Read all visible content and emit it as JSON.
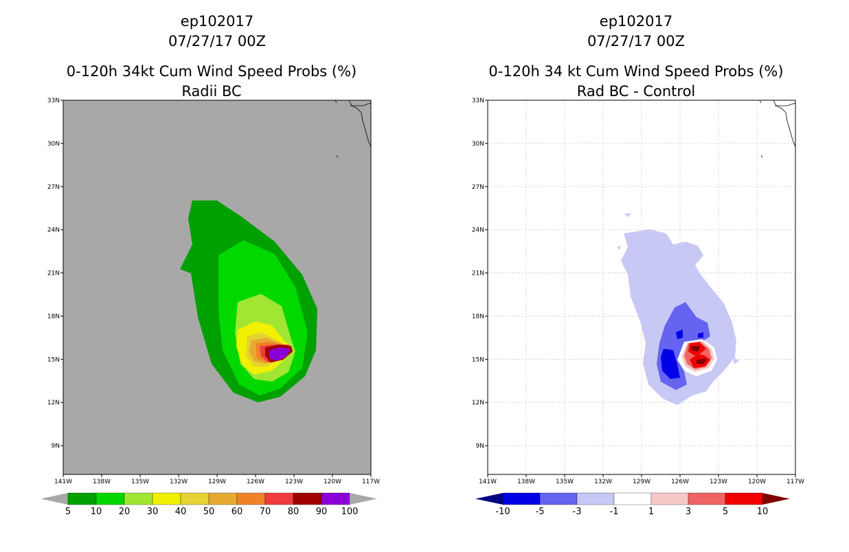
{
  "chart_data": [
    {
      "type": "contour-map",
      "storm_id": "ep102017",
      "date": "07/27/17 00Z",
      "title": "0-120h 34kt Cum Wind Speed Probs (%)",
      "subtitle": "Radii BC",
      "xlim": [
        -141,
        -117
      ],
      "ylim": [
        7,
        33
      ],
      "xticks": [
        "141W",
        "138W",
        "135W",
        "132W",
        "129W",
        "126W",
        "123W",
        "120W",
        "117W"
      ],
      "yticks": [
        "9N",
        "12N",
        "15N",
        "18N",
        "21N",
        "24N",
        "27N",
        "30N",
        "33N"
      ],
      "gridlines": false,
      "colorbar": {
        "labels": [
          "5",
          "10",
          "20",
          "30",
          "40",
          "50",
          "60",
          "70",
          "80",
          "90",
          "100"
        ],
        "colors": [
          "#00a000",
          "#00d800",
          "#a0e632",
          "#f0f000",
          "#e6d232",
          "#e6aa32",
          "#f08228",
          "#f03c3c",
          "#a00000",
          "#8c00d8"
        ],
        "under": "#a8a8a8",
        "over": "#a8a8a8"
      },
      "contour_centers": [
        {
          "level": 5,
          "lon": -124.8,
          "lat": 19.0
        },
        {
          "level": 10,
          "lon": -124.3,
          "lat": 18.0
        },
        {
          "level": 20,
          "lon": -124.3,
          "lat": 17.5
        },
        {
          "level": 30,
          "lon": -124.6,
          "lat": 16.0
        },
        {
          "level": 40,
          "lon": -124.3,
          "lat": 15.6
        },
        {
          "level": 50,
          "lon": -124.1,
          "lat": 15.3
        },
        {
          "level": 60,
          "lon": -123.9,
          "lat": 15.1
        },
        {
          "level": 70,
          "lon": -123.7,
          "lat": 15.05
        },
        {
          "level": 80,
          "lon": -123.3,
          "lat": 15.0
        },
        {
          "level": 90,
          "lon": -123.1,
          "lat": 15.0
        }
      ]
    },
    {
      "type": "contour-map",
      "storm_id": "ep102017",
      "date": "07/27/17 00Z",
      "title": "0-120h 34 kt Cum Wind Speed Probs (%)",
      "subtitle": "Rad BC - Control",
      "xlim": [
        -141,
        -117
      ],
      "ylim": [
        7,
        33
      ],
      "xticks": [
        "141W",
        "138W",
        "135W",
        "132W",
        "129W",
        "126W",
        "123W",
        "120W",
        "117W"
      ],
      "yticks": [
        "9N",
        "12N",
        "15N",
        "18N",
        "21N",
        "24N",
        "27N",
        "30N",
        "33N"
      ],
      "gridlines": true,
      "colorbar": {
        "labels": [
          "-10",
          "-5",
          "-3",
          "-1",
          "1",
          "3",
          "5",
          "10"
        ],
        "colors": [
          "#0000e6",
          "#6464f0",
          "#c8c8f5",
          "#ffffff",
          "#f5c8c8",
          "#f06464",
          "#f00000"
        ],
        "under": "#000080",
        "over": "#800000"
      },
      "contour_centers": [
        {
          "level": -1,
          "lon": -124.5,
          "lat": 17.5
        },
        {
          "level": -3,
          "lon": -125.0,
          "lat": 16.0
        },
        {
          "level": -5,
          "lon": -125.5,
          "lat": 14.5
        },
        {
          "level": 1,
          "lon": -123.5,
          "lat": 15.0
        },
        {
          "level": 3,
          "lon": -123.5,
          "lat": 15.0
        },
        {
          "level": 5,
          "lon": -123.4,
          "lat": 15.0
        },
        {
          "level": 10,
          "lon": -123.0,
          "lat": 14.5
        }
      ]
    }
  ]
}
